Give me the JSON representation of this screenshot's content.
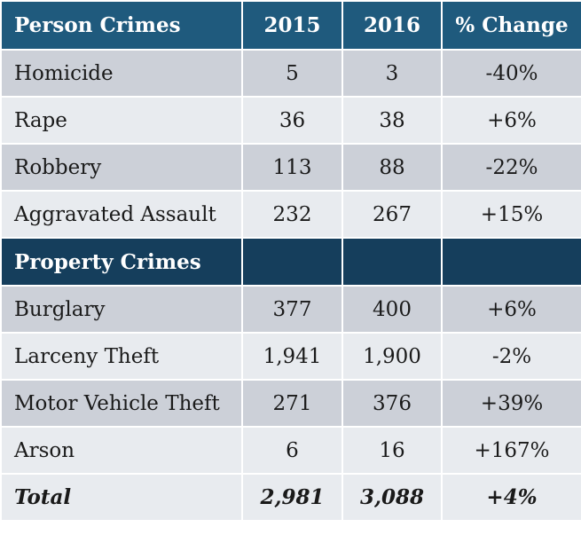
{
  "table": {
    "headers": [
      "Person Crimes",
      "2015",
      "2016",
      "% Change"
    ],
    "person_rows": [
      {
        "label": "Homicide",
        "y2015": "5",
        "y2016": "3",
        "change": "-40%"
      },
      {
        "label": "Rape",
        "y2015": "36",
        "y2016": "38",
        "change": "+6%"
      },
      {
        "label": "Robbery",
        "y2015": "113",
        "y2016": "88",
        "change": "-22%"
      },
      {
        "label": "Aggravated Assault",
        "y2015": "232",
        "y2016": "267",
        "change": "+15%"
      }
    ],
    "section_label": "Property Crimes",
    "property_rows": [
      {
        "label": "Burglary",
        "y2015": "377",
        "y2016": "400",
        "change": "+6%"
      },
      {
        "label": "Larceny Theft",
        "y2015": "1,941",
        "y2016": "1,900",
        "change": "-2%"
      },
      {
        "label": "Motor Vehicle Theft",
        "y2015": "271",
        "y2016": "376",
        "change": "+39%"
      },
      {
        "label": "Arson",
        "y2015": "6",
        "y2016": "16",
        "change": "+167%"
      }
    ],
    "total": {
      "label": "Total",
      "y2015": "2,981",
      "y2016": "3,088",
      "change": "+4%"
    }
  },
  "colors": {
    "header_bg": "#1f5a7d",
    "section_bg": "#153e5c",
    "row_dark": "#ccd0d8",
    "row_light": "#e8ebef"
  }
}
